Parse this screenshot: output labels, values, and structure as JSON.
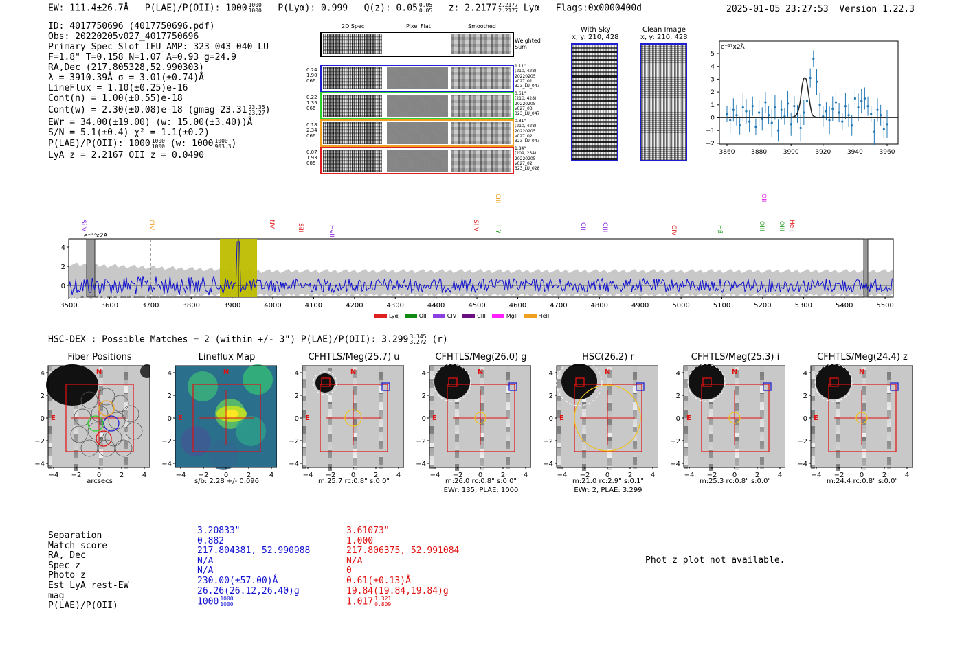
{
  "header": {
    "ew": "EW: 111.4±26.7Å",
    "plae_label": "P(LAE)/P(OII): 1000",
    "plae_hi": "1000",
    "plae_lo": "1000",
    "plya": "P(Lyα): 0.999",
    "qz_label": "Q(z): 0.05",
    "qz_hi": "0.05",
    "qz_lo": "0.05",
    "z_label": "z: 2.2177",
    "z_hi": "2.2177",
    "z_lo": "2.2177",
    "line": "Lyα",
    "flags": "Flags:0x0000400d",
    "timestamp": "2025-01-05 23:27:53",
    "version": "Version 1.22.3"
  },
  "info": {
    "id": "ID: 4017750696 (4017750696.pdf)",
    "obs": "Obs: 20220205v027_4017750696",
    "primary": "Primary Spec_Slot_IFU_AMP: 323_043_040_LU",
    "fwhm": "F=1.8\"  T=0.158  N=1.07  A=0.93  g=24.9",
    "radec": "RA,Dec (217.805328,52.990303)",
    "lambda": "λ = 3910.39Å  σ = 3.01(±0.74)Å",
    "lineflux": "LineFlux = 1.10(±0.25)e-16",
    "contn": "Cont(n) = 1.00(±0.55)e-18",
    "contw": "Cont(w) = 2.30(±0.08)e-18 (gmag 23.31",
    "contw_hi": "23.35",
    "contw_lo": "23.27",
    "contw_close": ")",
    "ewr": "EWr = 34.00(±19.00) (w: 15.00(±3.40))Å",
    "sn": "S/N = 5.1(±0.4)  χ² = 1.1(±0.2)",
    "plae": "P(LAE)/P(OII): 1000",
    "plae_hi": "1000",
    "plae_lo": "1000",
    "plae_w": " (w: 1000",
    "plae_w_hi": "1000",
    "plae_w_lo": "903.3",
    "plae_w_close": ")",
    "lyaz": "LyA z = 2.2167  OII z = 0.0490"
  },
  "cutouts2d": {
    "col_titles": [
      "2D Spec",
      "Pixel Flat",
      "Smoothed"
    ],
    "weighted": "Weighted\nSum",
    "rows": [
      {
        "left": [
          "0.24",
          "1.90",
          "066"
        ],
        "right": [
          "1.11\"",
          "(210, 428)",
          "20220205",
          "v027_01",
          "323_LU_047"
        ],
        "color": "#1f1fd0"
      },
      {
        "left": [
          "0.22",
          "1.35",
          "066"
        ],
        "right": [
          "0.61\"",
          "(210, 428)",
          "20220205",
          "v027_03",
          "323_LU_047"
        ],
        "color": "#2cd02c"
      },
      {
        "left": [
          "0.18",
          "2.34",
          "066"
        ],
        "right": [
          "0.81\"",
          "(210, 428)",
          "20220205",
          "v027_02",
          "323_LU_047"
        ],
        "color": "#f0a020"
      },
      {
        "left": [
          "0.07",
          "1.93",
          "085"
        ],
        "right": [
          "1.84\"",
          "(209, 254)",
          "20220205",
          "v027_02",
          "323_LU_028"
        ],
        "color": "#e02020"
      }
    ]
  },
  "sky": {
    "title": "With Sky",
    "coords": "x, y: 210, 428"
  },
  "clean": {
    "title": "Clean Image",
    "coords": "x, y: 210, 428"
  },
  "fit_chart": {
    "unit": "e⁻¹⁷x2Å",
    "xticks": [
      "3860",
      "3880",
      "3900",
      "3920",
      "3940",
      "3960"
    ],
    "yticks": [
      "5",
      "4",
      "3",
      "2",
      "1",
      "0",
      "−1",
      "−2"
    ]
  },
  "spectrum": {
    "unit": "e⁻¹⁷x2Å",
    "xticks": [
      "3500",
      "3600",
      "3700",
      "3800",
      "3900",
      "4000",
      "4100",
      "4200",
      "4300",
      "4400",
      "4500",
      "4600",
      "4700",
      "4800",
      "4900",
      "5000",
      "5100",
      "5200",
      "5300",
      "5400",
      "5500"
    ],
    "yticks": [
      "4",
      "2",
      "0"
    ],
    "lines": [
      {
        "label": "SiIV",
        "color": "#8a2be2"
      },
      {
        "label": "CIV",
        "color": "#f0a020"
      },
      {
        "label": "NV",
        "color": "#e02020"
      },
      {
        "label": "SiII",
        "color": "#e02020"
      },
      {
        "label": "HeII",
        "color": "#8a2be2"
      },
      {
        "label": "SiIV",
        "color": "#e02020"
      },
      {
        "label": "CIII",
        "color": "#f0a020"
      },
      {
        "label": "Hγ",
        "color": "#2ca02c"
      },
      {
        "label": "CII",
        "color": "#8a2be2"
      },
      {
        "label": "CIII",
        "color": "#8a2be2"
      },
      {
        "label": "CIV",
        "color": "#e02020"
      },
      {
        "label": "Hβ",
        "color": "#2ca02c"
      },
      {
        "label": "OII",
        "color": "#e020e0"
      },
      {
        "label": "OIII",
        "color": "#2ca02c"
      },
      {
        "label": "OIII",
        "color": "#2ca02c"
      },
      {
        "label": "HeII",
        "color": "#e02020"
      }
    ],
    "legend": [
      {
        "label": "Lyα",
        "color": "#e02020"
      },
      {
        "label": "OII",
        "color": "#108a10"
      },
      {
        "label": "CIV",
        "color": "#8a40e0"
      },
      {
        "label": "CIII",
        "color": "#6a1080"
      },
      {
        "label": "MgII",
        "color": "#ff20ff"
      },
      {
        "label": "HeII",
        "color": "#f0a020"
      }
    ]
  },
  "matches_header": "HSC-DEX : Possible Matches = 2 (within +/- 3\")  P(LAE)/P(OII): 3.299",
  "matches_header_hi": "3.345",
  "matches_header_lo": "3.272",
  "matches_header_band": "(r)",
  "imaging": [
    {
      "title": "Fiber Positions",
      "caption1": "arcsecs",
      "caption2": ""
    },
    {
      "title": "Lineflux Map",
      "caption1": "s/b: 2.28 +/- 0.096",
      "caption2": ""
    },
    {
      "title": "CFHTLS/Meg(25.7) u",
      "caption1": "m:25.7 rc:0.8\"  s:0.0\"",
      "caption2": ""
    },
    {
      "title": "CFHTLS/Meg(26.0) g",
      "caption1": "m:26.0 rc:0.8\"  s:0.0\"",
      "caption2": "EWr: 135, PLAE: 1000"
    },
    {
      "title": "HSC(26.2) r",
      "caption1": "m:21.0 rc:2.9\"  s:0.1\"",
      "caption2": "EWr: 2, PLAE: 3.299"
    },
    {
      "title": "CFHTLS/Meg(25.3) i",
      "caption1": "m:25.3 rc:0.8\"  s:0.0\"",
      "caption2": ""
    },
    {
      "title": "CFHTLS/Meg(24.4) z",
      "caption1": "m:24.4 rc:0.8\"  s:0.0\"",
      "caption2": ""
    }
  ],
  "axis": {
    "yticks": [
      "4",
      "2",
      "0",
      "−2",
      "−4"
    ],
    "xticks": [
      "−4",
      "−2",
      "0",
      "2",
      "4"
    ],
    "n": "N",
    "e": "E"
  },
  "match_table": {
    "labels": [
      "Separation",
      "Match score",
      "RA, Dec",
      "Spec z",
      "Photo z",
      "Est LyA rest-EW",
      "mag",
      "P(LAE)/P(OII)"
    ],
    "blue": [
      "3.20833\"",
      "0.882",
      "217.804381, 52.990988",
      "N/A",
      "N/A",
      "230.00(±57.00)Å",
      "26.26(26.12,26.40)g",
      "1000"
    ],
    "blue_frac": [
      "1000",
      "1000"
    ],
    "red": [
      "3.61073\"",
      "1.000",
      "217.806375, 52.991084",
      "N/A",
      "0",
      "0.61(±0.13)Å",
      "19.84(19.84,19.84)g",
      "1.017"
    ],
    "red_frac": [
      "1.321",
      "0.809"
    ]
  },
  "photz_msg": "Phot z plot not available."
}
